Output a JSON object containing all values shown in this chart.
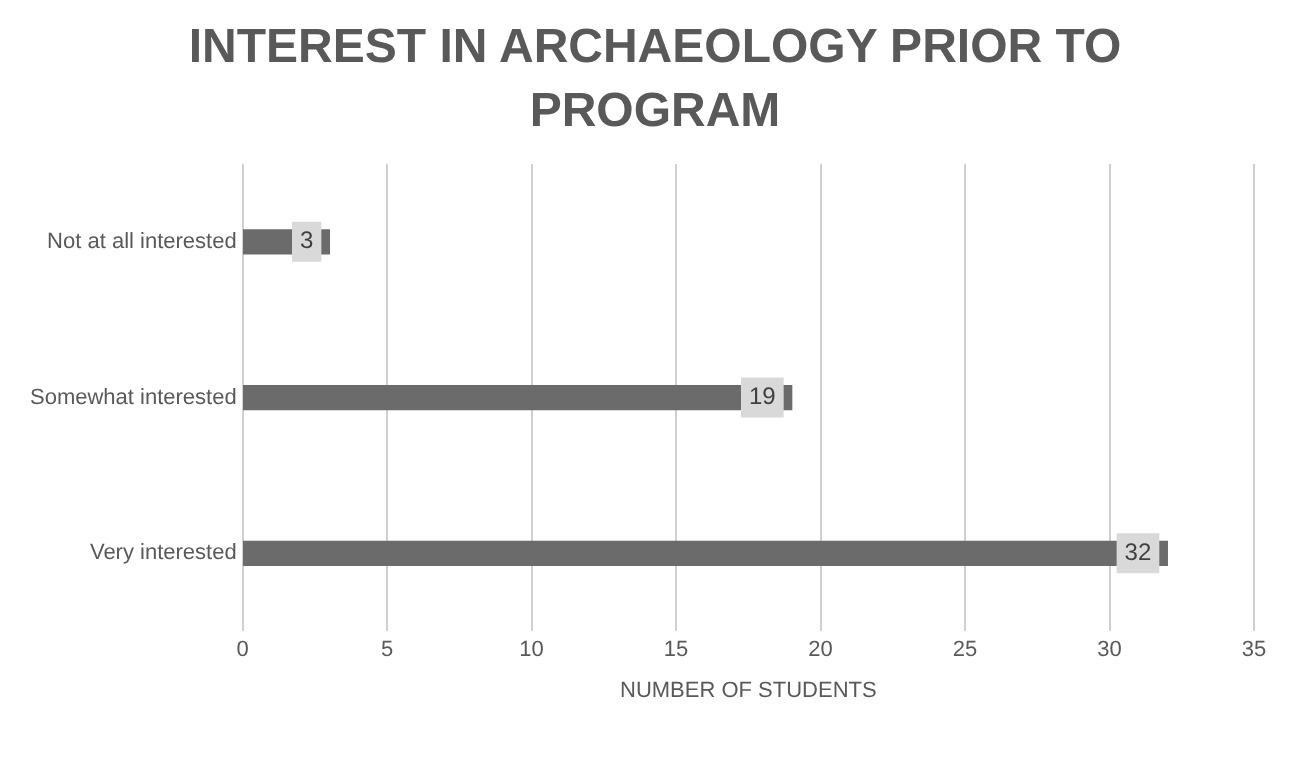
{
  "chart_data": {
    "type": "bar",
    "orientation": "horizontal",
    "title": "INTEREST IN ARCHAEOLOGY PRIOR TO PROGRAM",
    "xlabel": "NUMBER OF STUDENTS",
    "categories": [
      "Not at all interested",
      "Somewhat interested",
      "Very interested"
    ],
    "values": [
      3,
      19,
      32
    ],
    "color": "#6b6b6b",
    "xlim": [
      0,
      35
    ],
    "xticks": [
      0,
      5,
      10,
      15,
      20,
      25,
      30,
      35
    ],
    "grid": "x",
    "legend": false,
    "data_labels": true
  }
}
